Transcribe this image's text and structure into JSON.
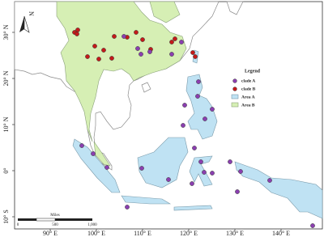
{
  "north": "N",
  "legend": {
    "title": "Legend",
    "items": [
      "clade A",
      "clade B",
      "Area A",
      "Area B"
    ]
  },
  "scale_bar": {
    "labels": [
      "0",
      "500",
      "1,000"
    ],
    "unit": "Miles"
  },
  "axes": {
    "longitude": [
      "90° E",
      "100° E",
      "110° E",
      "120° E",
      "130° E",
      "140° E"
    ],
    "latitude": [
      "30° N",
      "20° N",
      "10° N",
      "0°",
      "10° S"
    ]
  }
}
